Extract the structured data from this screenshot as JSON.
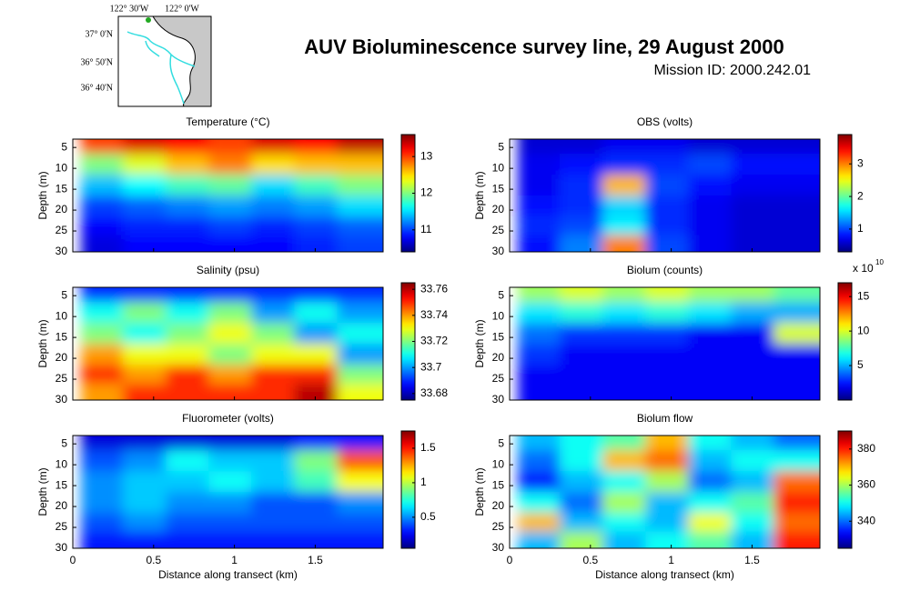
{
  "title": "AUV Bioluminescence survey line, 29 August 2000",
  "subtitle": "Mission ID: 2000.242.01",
  "map": {
    "xticklabels": [
      "122° 30'W",
      "122° 0'W"
    ],
    "yticklabels": [
      "37° 0'N",
      "36° 50'N",
      "36° 40'N"
    ]
  },
  "chart_data": [
    {
      "type": "heatmap",
      "title": "Temperature (°C)",
      "ylabel": "Depth (m)",
      "colormap": "jet",
      "y_reversed": true,
      "show_xticklabels": false,
      "x": [
        0.18,
        0.44,
        0.71,
        0.97,
        1.24,
        1.5,
        1.77
      ],
      "y": [
        4,
        9,
        14,
        19,
        24,
        28
      ],
      "z": [
        [
          13.0,
          13.3,
          13.2,
          13.0,
          13.3,
          13.2,
          13.4
        ],
        [
          12.0,
          12.3,
          12.6,
          12.8,
          12.5,
          12.6,
          12.6
        ],
        [
          11.4,
          11.6,
          11.8,
          11.9,
          11.5,
          11.8,
          12.0
        ],
        [
          11.0,
          11.1,
          11.2,
          11.3,
          11.2,
          11.3,
          11.5
        ],
        [
          10.8,
          10.9,
          10.9,
          11.0,
          10.9,
          11.0,
          11.1
        ],
        [
          10.7,
          10.8,
          10.8,
          10.8,
          10.8,
          10.9,
          11.0
        ]
      ],
      "xlim": [
        0,
        1.92
      ],
      "ylim": [
        3,
        30
      ],
      "xticks": [
        0,
        0.5,
        1,
        1.5
      ],
      "yticks": [
        5,
        10,
        15,
        20,
        25,
        30
      ],
      "clim": [
        10.4,
        13.6
      ],
      "cticks": [
        11,
        12,
        13
      ]
    },
    {
      "type": "heatmap",
      "title": "OBS (volts)",
      "ylabel": "Depth (m)",
      "colormap": "jet",
      "y_reversed": true,
      "show_xticklabels": false,
      "x": [
        0.18,
        0.44,
        0.71,
        0.97,
        1.24,
        1.5,
        1.77
      ],
      "y": [
        4,
        9,
        14,
        19,
        24,
        28
      ],
      "z": [
        [
          0.6,
          0.6,
          0.7,
          0.7,
          0.6,
          0.6,
          0.6
        ],
        [
          0.7,
          0.8,
          0.9,
          0.9,
          1.0,
          0.8,
          0.8
        ],
        [
          0.7,
          0.9,
          2.8,
          1.0,
          0.8,
          0.7,
          0.7
        ],
        [
          0.8,
          0.9,
          1.5,
          0.9,
          0.7,
          0.6,
          0.6
        ],
        [
          0.9,
          1.0,
          1.6,
          0.9,
          0.7,
          0.6,
          0.6
        ],
        [
          0.8,
          1.2,
          3.0,
          1.0,
          0.7,
          0.6,
          0.6
        ]
      ],
      "xlim": [
        0,
        1.92
      ],
      "ylim": [
        3,
        30
      ],
      "xticks": [
        0,
        0.5,
        1,
        1.5
      ],
      "yticks": [
        5,
        10,
        15,
        20,
        25,
        30
      ],
      "clim": [
        0.3,
        3.9
      ],
      "cticks": [
        1,
        2,
        3
      ]
    },
    {
      "type": "heatmap",
      "title": "Salinity (psu)",
      "ylabel": "Depth (m)",
      "colormap": "jet",
      "y_reversed": true,
      "show_xticklabels": false,
      "x": [
        0.18,
        0.44,
        0.71,
        0.97,
        1.24,
        1.5,
        1.77
      ],
      "y": [
        4,
        9,
        14,
        19,
        24,
        28
      ],
      "z": [
        [
          33.69,
          33.69,
          33.69,
          33.69,
          33.69,
          33.69,
          33.69
        ],
        [
          33.71,
          33.72,
          33.71,
          33.72,
          33.7,
          33.71,
          33.7
        ],
        [
          33.72,
          33.71,
          33.72,
          33.73,
          33.72,
          33.7,
          33.71
        ],
        [
          33.74,
          33.73,
          33.73,
          33.72,
          33.73,
          33.73,
          33.7
        ],
        [
          33.75,
          33.74,
          33.75,
          33.74,
          33.75,
          33.75,
          33.72
        ],
        [
          33.74,
          33.75,
          33.75,
          33.75,
          33.75,
          33.76,
          33.73
        ]
      ],
      "xlim": [
        0,
        1.92
      ],
      "ylim": [
        3,
        30
      ],
      "xticks": [
        0,
        0.5,
        1,
        1.5
      ],
      "yticks": [
        5,
        10,
        15,
        20,
        25,
        30
      ],
      "clim": [
        33.675,
        33.765
      ],
      "cticks": [
        33.68,
        33.7,
        33.72,
        33.74,
        33.76
      ]
    },
    {
      "type": "heatmap",
      "title": "Biolum (counts)",
      "ylabel": "Depth (m)",
      "colormap": "jet",
      "y_reversed": true,
      "show_xticklabels": false,
      "x": [
        0.18,
        0.44,
        0.71,
        0.97,
        1.24,
        1.5,
        1.77
      ],
      "y": [
        4,
        9,
        14,
        19,
        24,
        28
      ],
      "z": [
        [
          9,
          10,
          9,
          10,
          9,
          9,
          8
        ],
        [
          6,
          7,
          6,
          7,
          6,
          5,
          5
        ],
        [
          4,
          3,
          3,
          3,
          2,
          2,
          10
        ],
        [
          3,
          2,
          2,
          2,
          2,
          2,
          2
        ],
        [
          2,
          2,
          2,
          2,
          2,
          2,
          2
        ],
        [
          2,
          2,
          2,
          2,
          2,
          2,
          2
        ]
      ],
      "xlim": [
        0,
        1.92
      ],
      "ylim": [
        3,
        30
      ],
      "xticks": [
        0,
        0.5,
        1,
        1.5
      ],
      "yticks": [
        5,
        10,
        15,
        20,
        25,
        30
      ],
      "clim": [
        0,
        17
      ],
      "cticks": [
        5,
        10,
        15
      ],
      "colorbar_label": "x 10",
      "colorbar_label_exponent": "10"
    },
    {
      "type": "heatmap",
      "title": "Fluorometer (volts)",
      "ylabel": "Depth (m)",
      "xlabel": "Distance along transect (km)",
      "colormap": "jet",
      "y_reversed": true,
      "show_xticklabels": true,
      "x": [
        0.18,
        0.44,
        0.71,
        0.97,
        1.24,
        1.5,
        1.77
      ],
      "y": [
        4,
        9,
        14,
        19,
        24,
        28
      ],
      "z": [
        [
          0.2,
          0.2,
          0.2,
          0.2,
          0.2,
          0.3,
          0.3
        ],
        [
          0.4,
          0.5,
          0.7,
          0.6,
          0.6,
          0.9,
          1.4
        ],
        [
          0.5,
          0.6,
          0.6,
          0.7,
          0.6,
          0.8,
          1.1
        ],
        [
          0.5,
          0.6,
          0.5,
          0.5,
          0.4,
          0.4,
          0.5
        ],
        [
          0.4,
          0.5,
          0.4,
          0.4,
          0.4,
          0.4,
          0.4
        ],
        [
          0.3,
          0.3,
          0.3,
          0.3,
          0.3,
          0.3,
          0.3
        ]
      ],
      "xlim": [
        0,
        1.92
      ],
      "ylim": [
        3,
        30
      ],
      "xticks": [
        0,
        0.5,
        1,
        1.5
      ],
      "yticks": [
        5,
        10,
        15,
        20,
        25,
        30
      ],
      "clim": [
        0.05,
        1.75
      ],
      "cticks": [
        0.5,
        1,
        1.5
      ]
    },
    {
      "type": "heatmap",
      "title": "Biolum flow",
      "ylabel": "Depth (m)",
      "xlabel": "Distance along transect (km)",
      "colormap": "jet",
      "y_reversed": true,
      "show_xticklabels": true,
      "x": [
        0.18,
        0.44,
        0.71,
        0.97,
        1.24,
        1.5,
        1.77
      ],
      "y": [
        4,
        9,
        14,
        19,
        24,
        28
      ],
      "z": [
        [
          345,
          350,
          355,
          370,
          350,
          345,
          340
        ],
        [
          340,
          350,
          370,
          375,
          345,
          350,
          350
        ],
        [
          335,
          345,
          350,
          360,
          340,
          345,
          375
        ],
        [
          350,
          340,
          360,
          345,
          350,
          355,
          380
        ],
        [
          370,
          345,
          350,
          345,
          365,
          350,
          375
        ],
        [
          345,
          360,
          345,
          350,
          355,
          345,
          380
        ]
      ],
      "xlim": [
        0,
        1.92
      ],
      "ylim": [
        3,
        30
      ],
      "xticks": [
        0,
        0.5,
        1,
        1.5
      ],
      "yticks": [
        5,
        10,
        15,
        20,
        25,
        30
      ],
      "clim": [
        325,
        390
      ],
      "cticks": [
        340,
        360,
        380
      ]
    }
  ]
}
